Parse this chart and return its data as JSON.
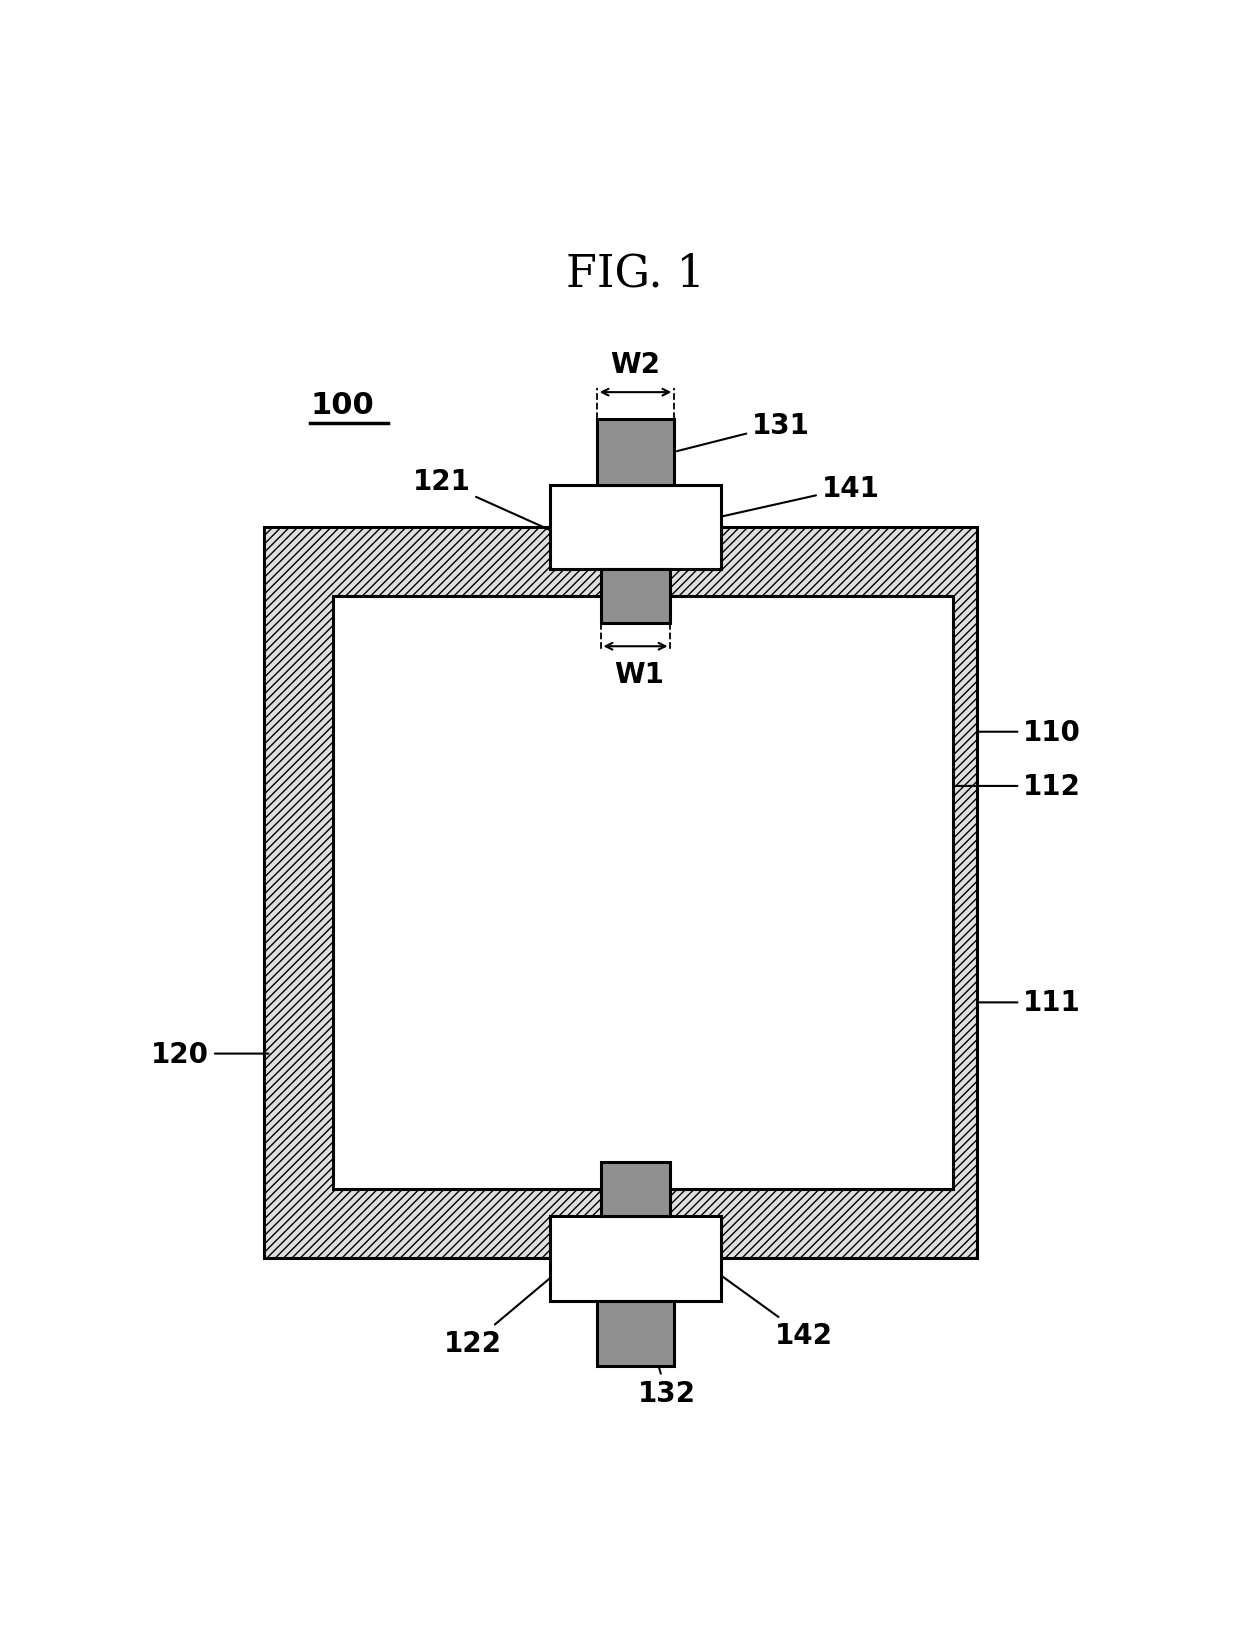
{
  "title": "FIG. 1",
  "title_fontsize": 32,
  "background_color": "#ffffff",
  "label_100": "100",
  "label_110": "110",
  "label_111": "111",
  "label_112": "112",
  "label_120": "120",
  "label_121": "121",
  "label_122": "122",
  "label_131": "131",
  "label_132": "132",
  "label_141": "141",
  "label_142": "142",
  "label_W1": "W1",
  "label_W2": "W2",
  "hatch_color": "#555555",
  "outer_case_facecolor": "#e0e0e0",
  "inner_body_color": "#ffffff",
  "adsorbent_color": "#909090",
  "line_color": "#000000",
  "annotation_fontsize": 20,
  "dim_fontsize": 20
}
